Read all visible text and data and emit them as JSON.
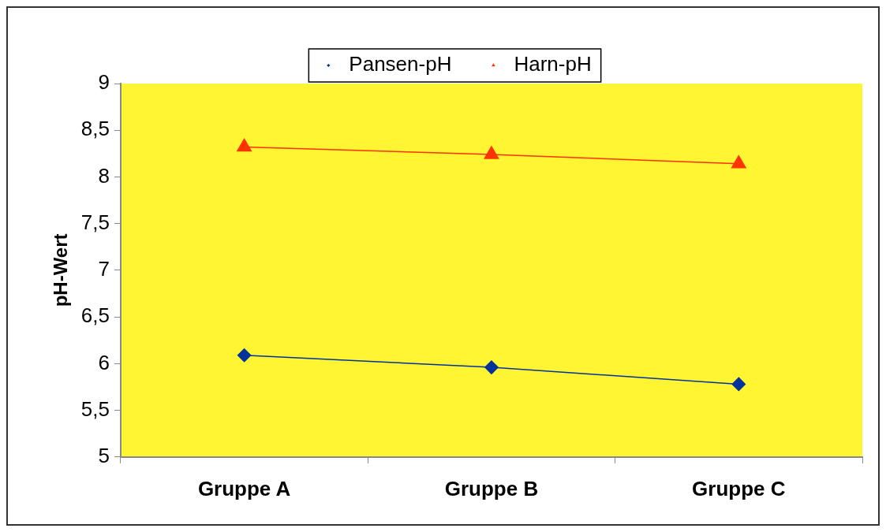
{
  "chart_data": {
    "type": "line",
    "ylabel": "pH-Wert",
    "categories": [
      "Gruppe A",
      "Gruppe B",
      "Gruppe C"
    ],
    "series": [
      {
        "name": "Pansen-pH",
        "color": "#003399",
        "marker": "diamond",
        "values": [
          6.09,
          5.96,
          5.78
        ]
      },
      {
        "name": "Harn-pH",
        "color": "#ff3300",
        "marker": "triangle",
        "values": [
          8.32,
          8.24,
          8.14
        ]
      }
    ],
    "ylim": [
      5,
      9
    ],
    "yticks": [
      5,
      {
        "value": 5.5,
        "label": "5,5"
      },
      6,
      {
        "value": 6.5,
        "label": "6,5"
      },
      7,
      {
        "value": 7.5,
        "label": "7,5"
      },
      8,
      {
        "value": 8.5,
        "label": "8,5"
      },
      9
    ],
    "legend": "top",
    "line_style": "solid"
  }
}
